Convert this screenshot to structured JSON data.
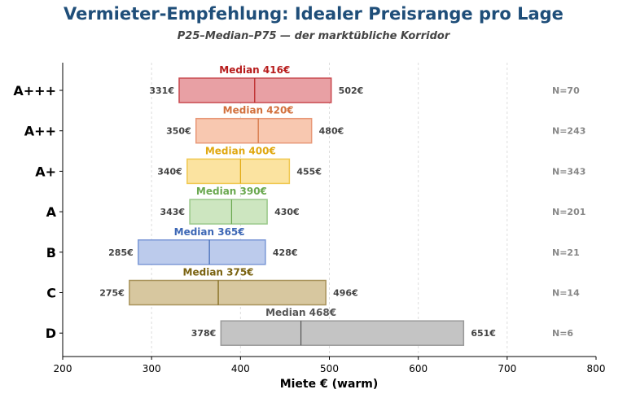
{
  "chart_data": {
    "type": "bar",
    "title": "Vermieter-Empfehlung: Idealer Preisrange pro Lage",
    "subtitle": "P25–Median–P75 — der marktübliche Korridor",
    "xlabel": "Miete € (warm)",
    "xlim": [
      200,
      800
    ],
    "xticks": [
      200,
      300,
      400,
      500,
      600,
      700,
      800
    ],
    "grid": "vertical-dashed",
    "median_prefix": "Median ",
    "n_prefix": "N=",
    "unit": "€",
    "categories": [
      "A+++",
      "A++",
      "A+",
      "A",
      "B",
      "C",
      "D"
    ],
    "series": [
      {
        "category": "A+++",
        "p25": 331,
        "median": 416,
        "p75": 502,
        "n": 70,
        "fill": "#e8a0a4",
        "edge": "#c8484e",
        "label_color": "#b71c1c"
      },
      {
        "category": "A++",
        "p25": 350,
        "median": 420,
        "p75": 480,
        "n": 243,
        "fill": "#f8c8b0",
        "edge": "#e89878",
        "label_color": "#d2703c"
      },
      {
        "category": "A+",
        "p25": 340,
        "median": 400,
        "p75": 455,
        "n": 343,
        "fill": "#fbe3a0",
        "edge": "#f0c850",
        "label_color": "#e0a810"
      },
      {
        "category": "A",
        "p25": 343,
        "median": 390,
        "p75": 430,
        "n": 201,
        "fill": "#cde6c0",
        "edge": "#98c888",
        "label_color": "#6aa84f"
      },
      {
        "category": "B",
        "p25": 285,
        "median": 365,
        "p75": 428,
        "n": 21,
        "fill": "#bccbec",
        "edge": "#7b98d6",
        "label_color": "#3d67b5"
      },
      {
        "category": "C",
        "p25": 275,
        "median": 375,
        "p75": 496,
        "n": 14,
        "fill": "#d7c79f",
        "edge": "#a8925a",
        "label_color": "#7a6210"
      },
      {
        "category": "D",
        "p25": 378,
        "median": 468,
        "p75": 651,
        "n": 6,
        "fill": "#c4c4c4",
        "edge": "#999999",
        "label_color": "#555555"
      }
    ]
  }
}
